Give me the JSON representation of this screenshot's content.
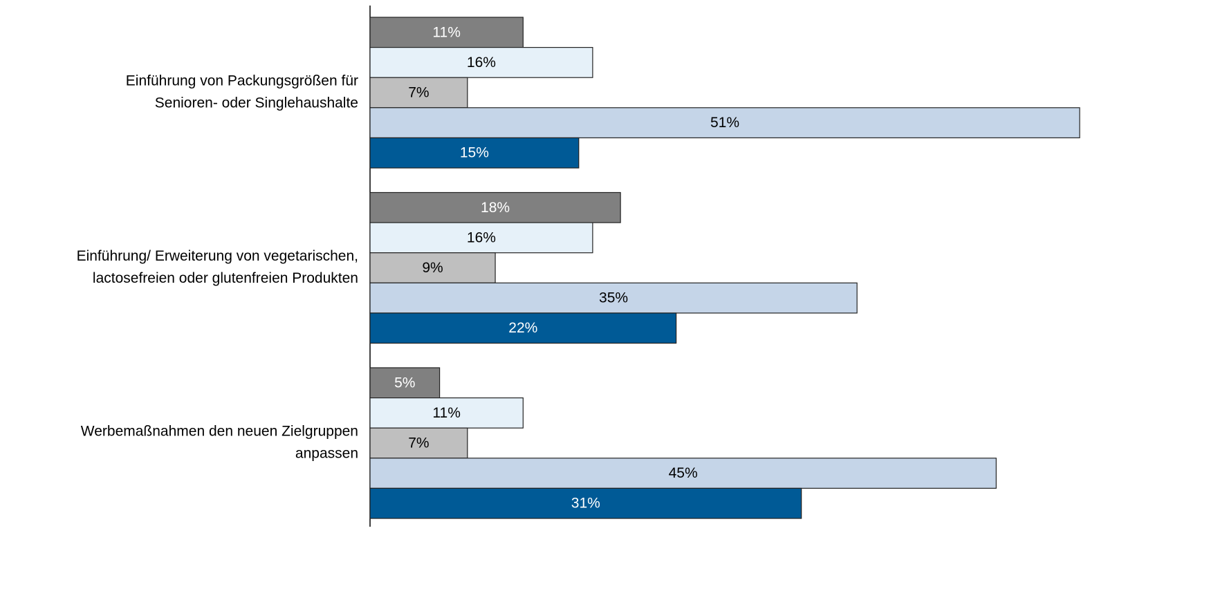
{
  "chart_data": {
    "type": "bar",
    "orientation": "horizontal",
    "categories": [
      [
        "Einführung von Packungsgrößen für",
        "Senioren- oder Singlehaushalte"
      ],
      [
        "Einführung/ Erweiterung von vegetarischen,",
        "lactosefreien oder glutenfreien Produkten"
      ],
      [
        "Werbemaßnahmen den neuen Zielgruppen",
        "anpassen"
      ]
    ],
    "series": [
      {
        "color": "#808080",
        "label_color": "#ffffff",
        "values": [
          11,
          18,
          5
        ],
        "value_labels": [
          "11%",
          "18%",
          "5%"
        ]
      },
      {
        "color": "#e6f1f9",
        "label_color": "#000000",
        "values": [
          16,
          16,
          11
        ],
        "value_labels": [
          "16%",
          "16%",
          "11%"
        ]
      },
      {
        "color": "#bfbfbf",
        "label_color": "#000000",
        "values": [
          7,
          9,
          7
        ],
        "value_labels": [
          "7%",
          "9%",
          "7%"
        ]
      },
      {
        "color": "#c5d5e8",
        "label_color": "#000000",
        "values": [
          51,
          35,
          45
        ],
        "value_labels": [
          "51%",
          "35%",
          "45%"
        ]
      },
      {
        "color": "#005a96",
        "label_color": "#ffffff",
        "values": [
          15,
          22,
          31
        ],
        "value_labels": [
          "15%",
          "22%",
          "31%"
        ]
      }
    ]
  }
}
